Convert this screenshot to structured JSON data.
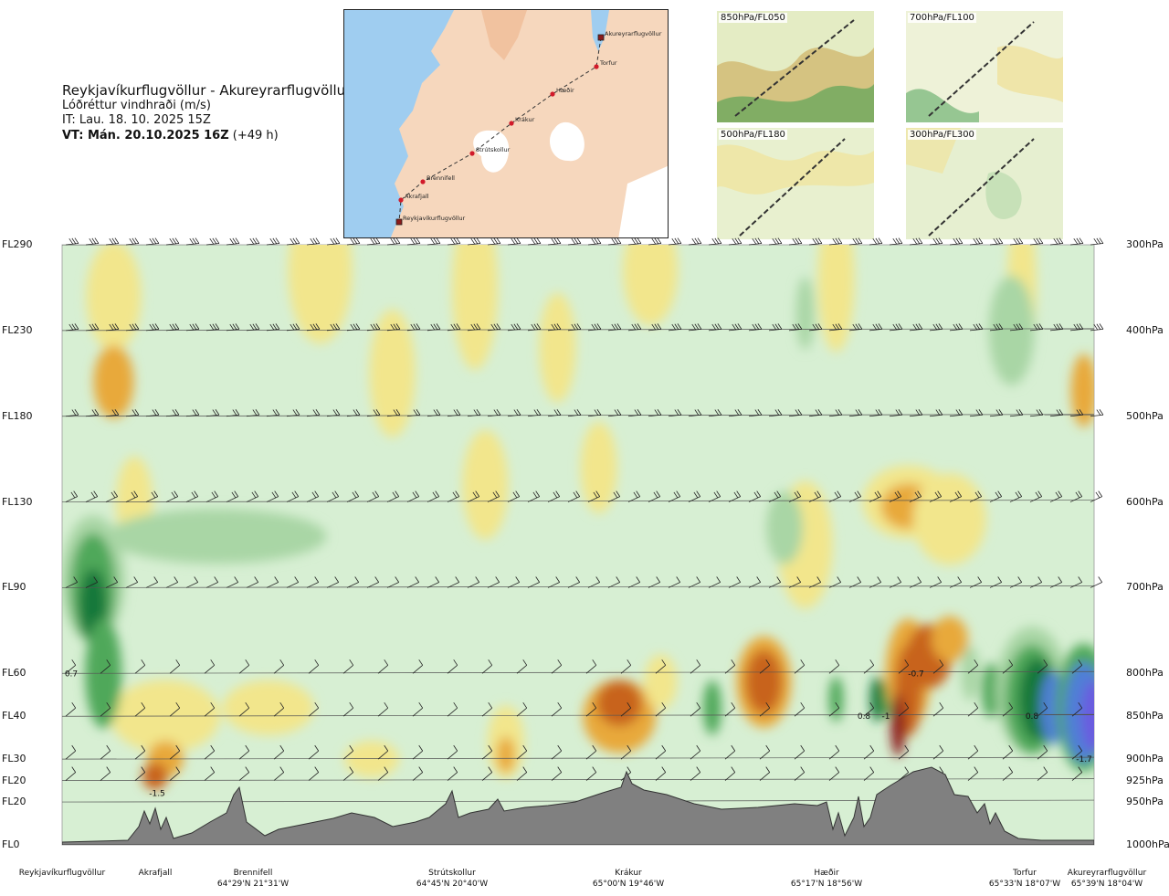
{
  "header": {
    "route": "Reykjavíkurflugvöllur - Akureyrarflugvöllur",
    "subtitle": "Lóðréttur vindhraði (m/s)",
    "issue_time": "IT: Lau. 18. 10. 2025 15Z",
    "valid_prefix": "VT: Mán. 20.10.2025 16Z",
    "valid_suffix": "(+49 h)"
  },
  "route_map": {
    "points": [
      {
        "name": "Akureyrarflugvöllur",
        "type": "airport"
      },
      {
        "name": "Torfur",
        "type": "waypoint"
      },
      {
        "name": "Hæðir",
        "type": "waypoint"
      },
      {
        "name": "Krákur",
        "type": "waypoint"
      },
      {
        "name": "Strútskollur",
        "type": "waypoint"
      },
      {
        "name": "Brennifell",
        "type": "waypoint"
      },
      {
        "name": "Akrafjall",
        "type": "waypoint"
      },
      {
        "name": "Reykjavíkurflugvöllur",
        "type": "airport"
      }
    ],
    "colors": {
      "sea": "#9fcdf0",
      "land": "#f4c8a4",
      "glacier": "#ffffff",
      "route": "#333333",
      "point": "#d11a2a"
    }
  },
  "level_maps": [
    {
      "label": "850hPa/FL050"
    },
    {
      "label": "700hPa/FL100"
    },
    {
      "label": "500hPa/FL180"
    },
    {
      "label": "300hPa/FL300"
    }
  ],
  "chart_data": {
    "type": "heatmap",
    "title": "Reykjavíkurflugvöllur - Akureyrarflugvöllur",
    "subtitle": "Lóðréttur vindhraði (m/s)",
    "flight_levels": [
      "FL290",
      "FL230",
      "FL180",
      "FL130",
      "FL90",
      "FL60",
      "FL40",
      "FL30",
      "FL20",
      "FL20",
      "FL0"
    ],
    "pressure_levels": [
      "300hPa",
      "400hPa",
      "500hPa",
      "600hPa",
      "700hPa",
      "800hPa",
      "850hPa",
      "900hPa",
      "925hPa",
      "950hPa",
      "1000hPa"
    ],
    "pressure_values_hpa": [
      300,
      400,
      500,
      600,
      700,
      800,
      850,
      900,
      925,
      950,
      1000
    ],
    "locations": [
      {
        "name": "Reykjavíkurflugvöllur",
        "coord": ""
      },
      {
        "name": "Akrafjall",
        "coord": ""
      },
      {
        "name": "Brennifell",
        "coord": "64°29'N 21°31'W"
      },
      {
        "name": "Strútskollur",
        "coord": "64°45'N 20°40'W"
      },
      {
        "name": "Krákur",
        "coord": "65°00'N 19°46'W"
      },
      {
        "name": "Hæðir",
        "coord": "65°17'N 18°56'W"
      },
      {
        "name": "Torfur",
        "coord": "65°33'N 18°07'W"
      },
      {
        "name": "Akureyrarflugvöllur",
        "coord": "65°39'N 18°04'W"
      }
    ],
    "annotations": [
      {
        "text": "0.7",
        "location": "Reykjavíkurflugvöllur",
        "pressure_hpa": 800
      },
      {
        "text": "-1.5",
        "location": "Akrafjall",
        "pressure_hpa": 940
      },
      {
        "text": "0.8",
        "location": "Hæðir",
        "pressure_hpa": 850
      },
      {
        "text": "-1",
        "location": "Hæðir",
        "pressure_hpa": 850
      },
      {
        "text": "-0.7",
        "location": "Hæðir",
        "pressure_hpa": 800
      },
      {
        "text": "0.8",
        "location": "Torfur",
        "pressure_hpa": 850
      },
      {
        "text": "-1.7",
        "location": "Akureyrarflugvöllur",
        "pressure_hpa": 900
      }
    ],
    "colors": {
      "neg_strong": "#8c1a1a",
      "neg_mid": "#c8641e",
      "neg_light": "#e8a93a",
      "neg_faint": "#f2e68c",
      "neutral": "#fbf7d4",
      "pos_faint": "#d7efd3",
      "pos_light": "#a9d6a5",
      "pos_mid": "#4fa85a",
      "pos_strong": "#17783a",
      "pos_blue": "#4f7fd6",
      "pos_violet": "#6a5ce0",
      "terrain": "#808080"
    },
    "legend": "none",
    "grid": false
  }
}
